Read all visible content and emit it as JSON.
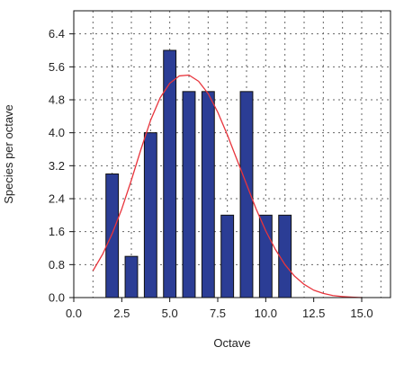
{
  "chart_data": {
    "type": "bar",
    "title": "",
    "xlabel": "Octave",
    "ylabel": "Species per octave",
    "xlim": [
      0,
      16.5
    ],
    "ylim": [
      0,
      6.96
    ],
    "grid": true,
    "legend": "none",
    "x_ticks": [
      {
        "value": 0,
        "label": "0.0"
      },
      {
        "value": 2.5,
        "label": "2.5"
      },
      {
        "value": 5,
        "label": "5.0"
      },
      {
        "value": 7.5,
        "label": "7.5"
      },
      {
        "value": 10,
        "label": "10.0"
      },
      {
        "value": 12.5,
        "label": "12.5"
      },
      {
        "value": 15,
        "label": "15.0"
      }
    ],
    "y_ticks": [
      {
        "value": 0,
        "label": "0.0"
      },
      {
        "value": 0.8,
        "label": "0.8"
      },
      {
        "value": 1.6,
        "label": "1.6"
      },
      {
        "value": 2.4,
        "label": "2.4"
      },
      {
        "value": 3.2,
        "label": "3.2"
      },
      {
        "value": 4.0,
        "label": "4.0"
      },
      {
        "value": 4.8,
        "label": "4.8"
      },
      {
        "value": 5.6,
        "label": "5.6"
      },
      {
        "value": 6.4,
        "label": "6.4"
      }
    ],
    "grid_x": [
      1,
      2,
      3,
      4,
      5,
      6,
      7,
      8,
      9,
      10,
      11,
      12,
      13,
      14,
      15,
      16
    ],
    "bars": {
      "x": [
        2,
        3,
        4,
        5,
        6,
        7,
        8,
        9,
        10,
        11
      ],
      "values": [
        3,
        1,
        4,
        6,
        5,
        5,
        2,
        5,
        2,
        2
      ],
      "width": 0.65,
      "color": "#2b3d95",
      "edge_color": "#111111"
    },
    "curve": {
      "type": "lognormal_fit",
      "color": "#e8343c",
      "x": [
        1,
        1.5,
        2,
        2.5,
        3,
        3.5,
        4,
        4.5,
        5,
        5.5,
        6,
        6.5,
        7,
        7.5,
        8,
        8.5,
        9,
        9.5,
        10,
        10.5,
        11,
        11.5,
        12,
        12.5,
        13,
        13.5,
        14,
        14.5,
        15
      ],
      "y": [
        0.65,
        1.05,
        1.55,
        2.15,
        2.85,
        3.6,
        4.3,
        4.85,
        5.2,
        5.38,
        5.4,
        5.25,
        4.95,
        4.5,
        3.95,
        3.35,
        2.75,
        2.15,
        1.62,
        1.17,
        0.8,
        0.52,
        0.32,
        0.18,
        0.1,
        0.05,
        0.025,
        0.01,
        0.0
      ]
    },
    "colors": {
      "bar": "#2b3d95",
      "curve": "#e8343c",
      "grid": "#666666",
      "axis": "#111111"
    }
  }
}
